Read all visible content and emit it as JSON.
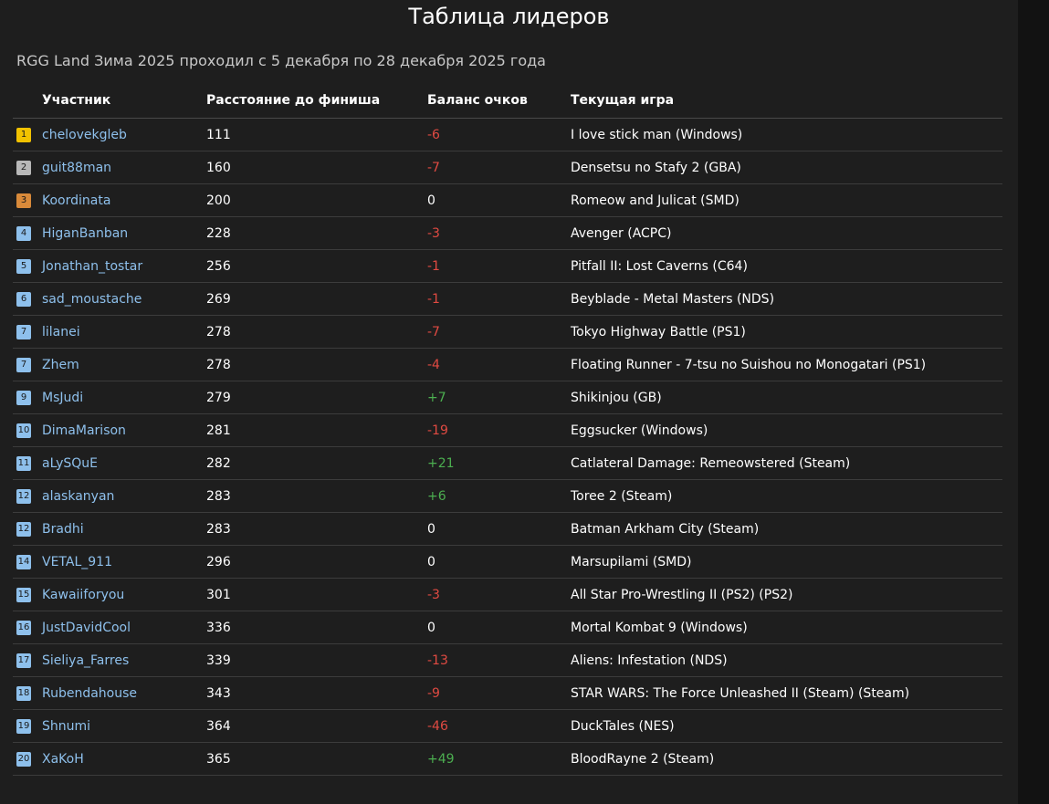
{
  "page": {
    "title": "Таблица лидеров",
    "subtitle": "RGG Land Зима 2025 проходил с 5 декабря по 28 декабря 2025 года"
  },
  "colors": {
    "gold": "#f2c200",
    "silver": "#b8b8b8",
    "bronze": "#d98a3a",
    "default_badge": "#8ec0ec",
    "negative": "#e04a42",
    "positive": "#4caf50",
    "link": "#8ec0ec"
  },
  "table": {
    "headers": {
      "participant": "Участник",
      "distance": "Расстояние до финиша",
      "balance": "Баланс очков",
      "game": "Текущая игра"
    },
    "rows": [
      {
        "rank": "1",
        "name": "chelovekgleb",
        "distance": "111",
        "balance": "-6",
        "game": "I love stick man (Windows)"
      },
      {
        "rank": "2",
        "name": "guit88man",
        "distance": "160",
        "balance": "-7",
        "game": "Densetsu no Stafy 2 (GBA)"
      },
      {
        "rank": "3",
        "name": "Koordinata",
        "distance": "200",
        "balance": "0",
        "game": "Romeow and Julicat (SMD)"
      },
      {
        "rank": "4",
        "name": "HiganBanban",
        "distance": "228",
        "balance": "-3",
        "game": "Avenger (ACPC)"
      },
      {
        "rank": "5",
        "name": "Jonathan_tostar",
        "distance": "256",
        "balance": "-1",
        "game": "Pitfall II: Lost Caverns (C64)"
      },
      {
        "rank": "6",
        "name": "sad_moustache",
        "distance": "269",
        "balance": "-1",
        "game": "Beyblade - Metal Masters (NDS)"
      },
      {
        "rank": "7",
        "name": "lilanei",
        "distance": "278",
        "balance": "-7",
        "game": "Tokyo Highway Battle (PS1)"
      },
      {
        "rank": "7",
        "name": "Zhem",
        "distance": "278",
        "balance": "-4",
        "game": "Floating Runner - 7-tsu no Suishou no Monogatari (PS1)"
      },
      {
        "rank": "9",
        "name": "MsJudi",
        "distance": "279",
        "balance": "+7",
        "game": "Shikinjou (GB)"
      },
      {
        "rank": "10",
        "name": "DimaMarison",
        "distance": "281",
        "balance": "-19",
        "game": "Eggsucker (Windows)"
      },
      {
        "rank": "11",
        "name": "aLySQuE",
        "distance": "282",
        "balance": "+21",
        "game": "Catlateral Damage: Remeowstered (Steam)"
      },
      {
        "rank": "12",
        "name": "alaskanyan",
        "distance": "283",
        "balance": "+6",
        "game": "Toree 2 (Steam)"
      },
      {
        "rank": "12",
        "name": "Bradhi",
        "distance": "283",
        "balance": "0",
        "game": "Batman Arkham City (Steam)"
      },
      {
        "rank": "14",
        "name": "VETAL_911",
        "distance": "296",
        "balance": "0",
        "game": "Marsupilami (SMD)"
      },
      {
        "rank": "15",
        "name": "Kawaiiforyou",
        "distance": "301",
        "balance": "-3",
        "game": "All Star Pro-Wrestling II (PS2) (PS2)"
      },
      {
        "rank": "16",
        "name": "JustDavidCool",
        "distance": "336",
        "balance": "0",
        "game": "Mortal Kombat 9 (Windows)"
      },
      {
        "rank": "17",
        "name": "Sieliya_Farres",
        "distance": "339",
        "balance": "-13",
        "game": "Aliens: Infestation (NDS)"
      },
      {
        "rank": "18",
        "name": "Rubendahouse",
        "distance": "343",
        "balance": "-9",
        "game": "STAR WARS: The Force Unleashed II (Steam) (Steam)"
      },
      {
        "rank": "19",
        "name": "Shnumi",
        "distance": "364",
        "balance": "-46",
        "game": "DuckTales (NES)"
      },
      {
        "rank": "20",
        "name": "XaKoH",
        "distance": "365",
        "balance": "+49",
        "game": "BloodRayne 2 (Steam)"
      }
    ]
  }
}
